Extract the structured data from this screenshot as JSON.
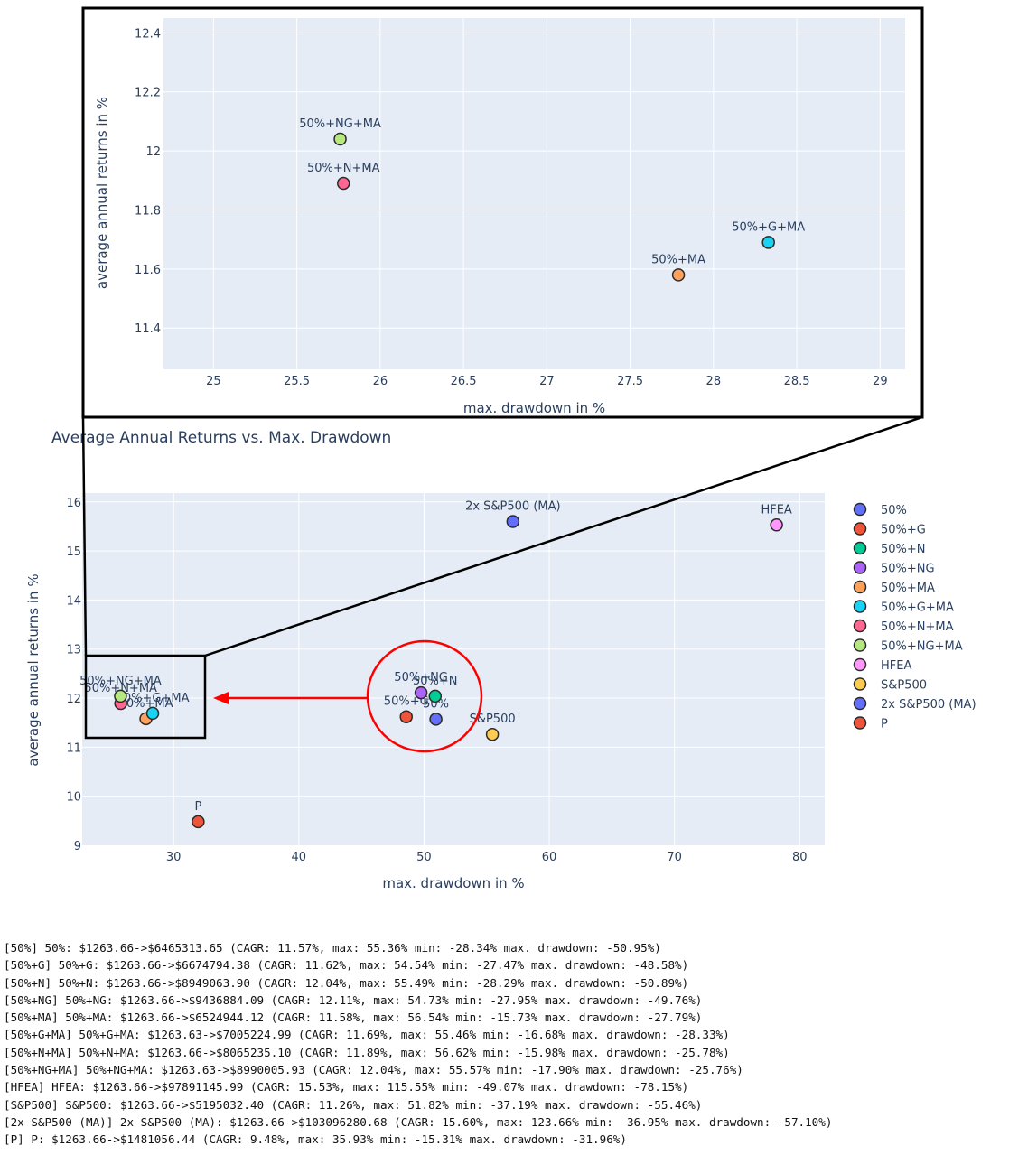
{
  "chart_data": [
    {
      "type": "scatter",
      "title": "",
      "xlabel": "max. drawdown in %",
      "ylabel": "average annual returns in %",
      "xlim": [
        24.7,
        29.15
      ],
      "ylim": [
        11.26,
        12.45
      ],
      "xticks": [
        25,
        25.5,
        26,
        26.5,
        27,
        27.5,
        28,
        28.5,
        29
      ],
      "xtick_labels": [
        "25",
        "25.5",
        "26",
        "26.5",
        "27",
        "27.5",
        "28",
        "28.5",
        "29"
      ],
      "yticks": [
        11.4,
        11.6,
        11.8,
        12,
        12.2,
        12.4
      ],
      "ytick_labels": [
        "11.4",
        "11.6",
        "11.8",
        "12",
        "12.2",
        "12.4"
      ],
      "grid": true,
      "points": [
        {
          "label": "50%+NG+MA",
          "x": 25.76,
          "y": 12.04,
          "color": "#b6e880"
        },
        {
          "label": "50%+N+MA",
          "x": 25.78,
          "y": 11.89,
          "color": "#ff6692"
        },
        {
          "label": "50%+G+MA",
          "x": 28.33,
          "y": 11.69,
          "color": "#19d3f3"
        },
        {
          "label": "50%+MA",
          "x": 27.79,
          "y": 11.58,
          "color": "#ffa15a"
        }
      ]
    },
    {
      "type": "scatter",
      "title": "Average Annual Returns vs. Max. Drawdown",
      "xlabel": "max. drawdown in %",
      "ylabel": "average annual returns in %",
      "xlim": [
        22.7,
        82
      ],
      "ylim": [
        9,
        16.18
      ],
      "xticks": [
        30,
        40,
        50,
        60,
        70,
        80
      ],
      "xtick_labels": [
        "30",
        "40",
        "50",
        "60",
        "70",
        "80"
      ],
      "yticks": [
        9,
        10,
        11,
        12,
        13,
        14,
        15,
        16
      ],
      "ytick_labels": [
        "9",
        "10",
        "11",
        "12",
        "13",
        "14",
        "15",
        "16"
      ],
      "grid": true,
      "legend_position": "right",
      "series": [
        {
          "name": "50%",
          "x": 50.95,
          "y": 11.57,
          "color": "#636efa"
        },
        {
          "name": "50%+G",
          "x": 48.58,
          "y": 11.62,
          "color": "#ef553b"
        },
        {
          "name": "50%+N",
          "x": 50.89,
          "y": 12.04,
          "color": "#00cc96"
        },
        {
          "name": "50%+NG",
          "x": 49.76,
          "y": 12.11,
          "color": "#ab63fa"
        },
        {
          "name": "50%+MA",
          "x": 27.79,
          "y": 11.58,
          "color": "#ffa15a"
        },
        {
          "name": "50%+G+MA",
          "x": 28.33,
          "y": 11.69,
          "color": "#19d3f3"
        },
        {
          "name": "50%+N+MA",
          "x": 25.78,
          "y": 11.89,
          "color": "#ff6692"
        },
        {
          "name": "50%+NG+MA",
          "x": 25.76,
          "y": 12.04,
          "color": "#b6e880"
        },
        {
          "name": "HFEA",
          "x": 78.15,
          "y": 15.53,
          "color": "#ff97ff"
        },
        {
          "name": "S&P500",
          "x": 55.46,
          "y": 11.26,
          "color": "#fecb52"
        },
        {
          "name": "2x S&P500 (MA)",
          "x": 57.1,
          "y": 15.6,
          "color": "#636efa"
        },
        {
          "name": "P",
          "x": 31.96,
          "y": 9.48,
          "color": "#ef553b"
        }
      ]
    }
  ],
  "colors": {
    "plot_background": "#e5ecf6",
    "gridline": "#ffffff",
    "axis_text": "#2a3f5f",
    "annotation_arrow": "#ff0000",
    "zoom_box": "#000000"
  },
  "console_output": [
    "[50%] 50%: $1263.66->$6465313.65 (CAGR: 11.57%, max: 55.36% min: -28.34% max. drawdown: -50.95%)",
    "[50%+G] 50%+G: $1263.66->$6674794.38 (CAGR: 11.62%, max: 54.54% min: -27.47% max. drawdown: -48.58%)",
    "[50%+N] 50%+N: $1263.66->$8949063.90 (CAGR: 12.04%, max: 55.49% min: -28.29% max. drawdown: -50.89%)",
    "[50%+NG] 50%+NG: $1263.66->$9436884.09 (CAGR: 12.11%, max: 54.73% min: -27.95% max. drawdown: -49.76%)",
    "[50%+MA] 50%+MA: $1263.66->$6524944.12 (CAGR: 11.58%, max: 56.54% min: -15.73% max. drawdown: -27.79%)",
    "[50%+G+MA] 50%+G+MA: $1263.63->$7005224.99 (CAGR: 11.69%, max: 55.46% min: -16.68% max. drawdown: -28.33%)",
    "[50%+N+MA] 50%+N+MA: $1263.66->$8065235.10 (CAGR: 11.89%, max: 56.62% min: -15.98% max. drawdown: -25.78%)",
    "[50%+NG+MA] 50%+NG+MA: $1263.63->$8990005.93 (CAGR: 12.04%, max: 55.57% min: -17.90% max. drawdown: -25.76%)",
    "[HFEA] HFEA: $1263.66->$97891145.99 (CAGR: 15.53%, max: 115.55% min: -49.07% max. drawdown: -78.15%)",
    "[S&P500] S&P500: $1263.66->$5195032.40 (CAGR: 11.26%, max: 51.82% min: -37.19% max. drawdown: -55.46%)",
    "[2x S&P500 (MA)] 2x S&P500 (MA): $1263.66->$103096280.68 (CAGR: 15.60%, max: 123.66% min: -36.95% max. drawdown: -57.10%)",
    "[P] P: $1263.66->$1481056.44 (CAGR: 9.48%, max: 35.93% min: -15.31% max. drawdown: -31.96%)"
  ]
}
